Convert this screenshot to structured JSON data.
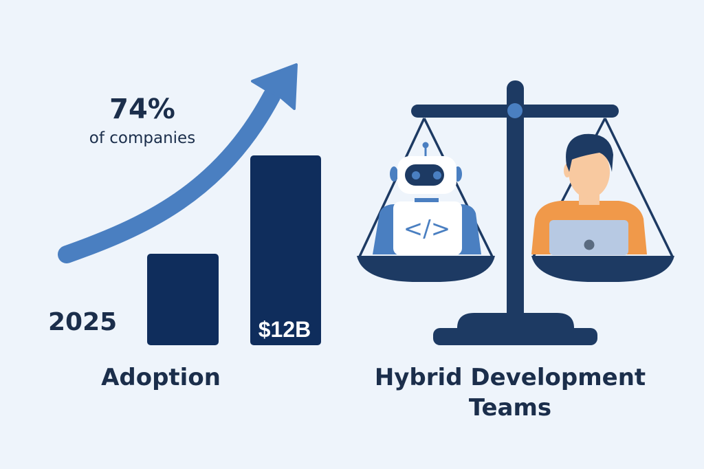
{
  "left_panel": {
    "stat_value": "74%",
    "stat_caption": "of companies",
    "year": "2025",
    "bar_label": "$12B",
    "title": "Adoption"
  },
  "right_panel": {
    "title_line1": "Hybrid Development",
    "title_line2": "Teams",
    "code_symbol": "</>"
  },
  "icons": [
    "growth-arrow",
    "bar-chart",
    "balance-scale",
    "robot",
    "person-with-laptop"
  ],
  "colors": {
    "background": "#eef4fb",
    "navy": "#1d3a63",
    "bar": "#0f2d5c",
    "accent_blue": "#4a7fc1",
    "shirt_orange": "#f0994a",
    "skin": "#f8c9a0"
  }
}
